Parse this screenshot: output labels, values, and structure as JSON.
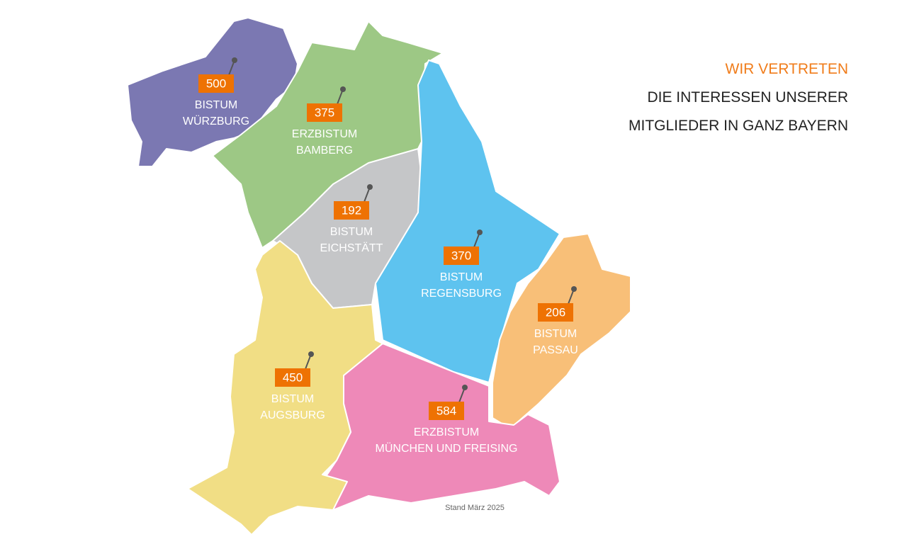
{
  "heading": {
    "line1": "WIR VERTRETEN",
    "line2": "DIE INTERESSEN UNSERER",
    "line3": "MITGLIEDER IN GANZ BAYERN"
  },
  "regions": [
    {
      "count": 500,
      "label_lines": [
        "BISTUM",
        "WÜRZBURG"
      ]
    },
    {
      "count": 375,
      "label_lines": [
        "ERZBISTUM",
        "BAMBERG"
      ]
    },
    {
      "count": 192,
      "label_lines": [
        "BISTUM",
        "EICHSTÄTT"
      ]
    },
    {
      "count": 370,
      "label_lines": [
        "BISTUM",
        "REGENSBURG"
      ]
    },
    {
      "count": 206,
      "label_lines": [
        "BISTUM",
        "PASSAU"
      ]
    },
    {
      "count": 450,
      "label_lines": [
        "BISTUM",
        "AUGSBURG"
      ]
    },
    {
      "count": 584,
      "label_lines": [
        "ERZBISTUM",
        "MÜNCHEN UND FREISING"
      ]
    }
  ],
  "footnote": "Stand März 2025"
}
